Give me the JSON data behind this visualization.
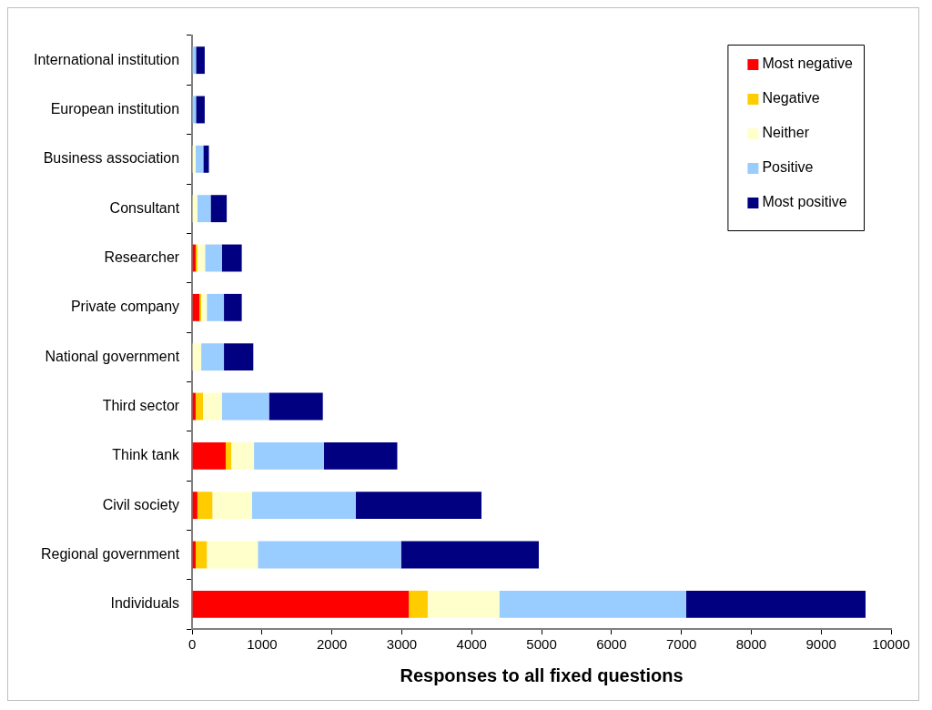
{
  "chart_data": {
    "type": "bar",
    "orientation": "horizontal",
    "stacked": true,
    "xlabel": "Responses to all fixed questions",
    "categories": [
      "International institution",
      "European institution",
      "Business association",
      "Consultant",
      "Researcher",
      "Private company",
      "National government",
      "Third sector",
      "Think tank",
      "Civil society",
      "Regional government",
      "Individuals"
    ],
    "series": [
      {
        "name": "Most negative",
        "color": "#ff0000",
        "values": [
          0,
          0,
          0,
          0,
          50,
          105,
          0,
          50,
          480,
          75,
          50,
          3100
        ]
      },
      {
        "name": "Negative",
        "color": "#ffcc00",
        "values": [
          0,
          0,
          0,
          0,
          25,
          25,
          0,
          105,
          80,
          215,
          160,
          270
        ]
      },
      {
        "name": "Neither",
        "color": "#ffffcc",
        "values": [
          null,
          null,
          50,
          75,
          110,
          80,
          130,
          270,
          325,
          565,
          730,
          1025
        ]
      },
      {
        "name": "Positive",
        "color": "#99ccff",
        "values": [
          55,
          55,
          110,
          190,
          240,
          245,
          325,
          675,
          1000,
          1485,
          2050,
          2675
        ]
      },
      {
        "name": "Most positive",
        "color": "#000080",
        "values": [
          125,
          125,
          80,
          230,
          285,
          255,
          420,
          770,
          1050,
          1800,
          1970,
          2565
        ]
      }
    ],
    "xlim": [
      0,
      10000
    ],
    "xticks": [
      0,
      1000,
      2000,
      3000,
      4000,
      5000,
      6000,
      7000,
      8000,
      9000,
      10000
    ],
    "grid": false,
    "legend": "top right"
  }
}
